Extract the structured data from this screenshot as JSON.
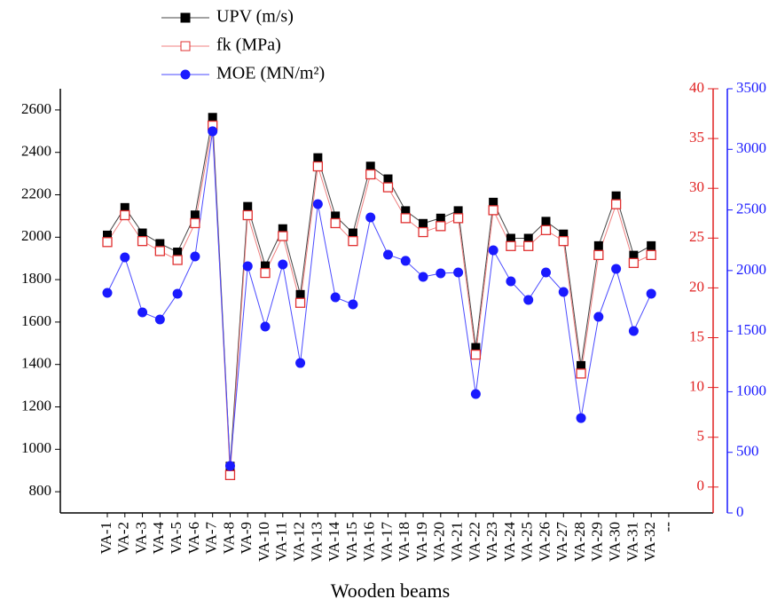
{
  "chart_data": {
    "type": "line",
    "x_label": "Wooden beams",
    "categories": [
      "VA-1",
      "VA-2",
      "VA-3",
      "VA-4",
      "VA-5",
      "VA-6",
      "VA-7",
      "VA-8",
      "VA-9",
      "VA-10",
      "VA-11",
      "VA-12",
      "VA-13",
      "VA-14",
      "VA-15",
      "VA-16",
      "VA-17",
      "VA-18",
      "VA-19",
      "VA-20",
      "VA-21",
      "VA-22",
      "VA-23",
      "VA-24",
      "VA-25",
      "VA-26",
      "VA-27",
      "VA-28",
      "VA-29",
      "VA-30",
      "VA-31",
      "VA-32",
      "--"
    ],
    "series": [
      {
        "name": "UPV (m/s)",
        "color": "#000000",
        "line_color": "#444444",
        "marker": "square",
        "values": [
          2010,
          2140,
          2020,
          1970,
          1930,
          2105,
          2565,
          920,
          2145,
          1865,
          2040,
          1730,
          2375,
          2100,
          2020,
          2335,
          2275,
          2125,
          2065,
          2090,
          2125,
          1480,
          2165,
          1995,
          1995,
          2075,
          2015,
          1395,
          1960,
          2195,
          1915,
          1960,
          null
        ]
      },
      {
        "name": "fk (MPa)",
        "color": "#e03030",
        "line_color": "#f08080",
        "marker": "open-square",
        "axis": "y2",
        "values": [
          24.6,
          27.3,
          24.7,
          23.7,
          22.8,
          26.5,
          36.3,
          1.2,
          27.3,
          21.5,
          25.2,
          18.5,
          32.2,
          26.5,
          24.7,
          31.4,
          30.1,
          27.0,
          25.6,
          26.2,
          27.0,
          13.3,
          27.8,
          24.2,
          24.2,
          25.8,
          24.7,
          11.4,
          23.3,
          28.4,
          22.5,
          23.3,
          null
        ]
      },
      {
        "name": "MOE (MN/m²)",
        "color": "#1a1aff",
        "line_color": "#4a4aff",
        "marker": "circle",
        "axis": "y3",
        "values": [
          1816,
          2109,
          1655,
          1596,
          1809,
          2116,
          3149,
          388,
          2036,
          1538,
          2050,
          1237,
          2548,
          1779,
          1721,
          2438,
          2131,
          2080,
          1948,
          1977,
          1984,
          981,
          2167,
          1911,
          1757,
          1984,
          1823,
          783,
          1618,
          2014,
          1501,
          1809,
          null
        ]
      }
    ],
    "ylim": [
      700,
      2700
    ],
    "yticks": [
      800,
      1000,
      1200,
      1400,
      1600,
      1800,
      2000,
      2200,
      2400,
      2600
    ],
    "y2lim": [
      -2.6,
      40
    ],
    "y2ticks": [
      0,
      5,
      10,
      15,
      20,
      25,
      30,
      35,
      40
    ],
    "y2_color": "#e02020",
    "y3lim": [
      0,
      3500
    ],
    "y3ticks": [
      0,
      500,
      1000,
      1500,
      2000,
      2500,
      3000,
      3500
    ],
    "y3_color": "#1a1aff",
    "grid": false
  }
}
